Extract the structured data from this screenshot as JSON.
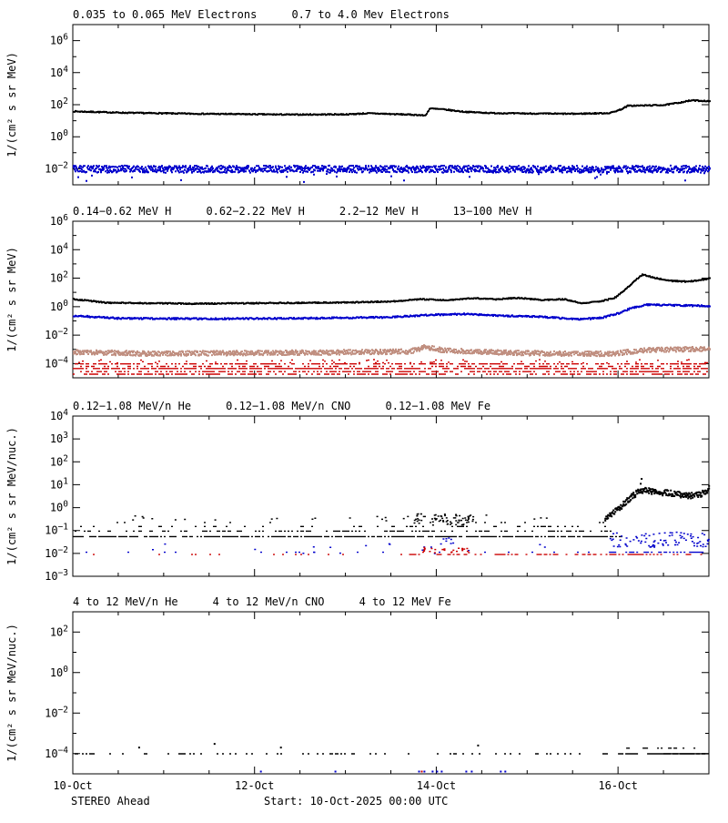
{
  "footer": {
    "left": "STEREO Ahead",
    "center": "Start: 10-Oct-2025 00:00 UTC"
  },
  "colors": {
    "frame": "#000000",
    "background": "#ffffff",
    "black": "#000000",
    "blue": "#0000cc",
    "tan": "#c08f80",
    "red": "#cc0000"
  },
  "x_axis": {
    "lim_days": [
      0,
      7
    ],
    "minor_step_days": 0.5,
    "major_ticks": [
      {
        "day": 0,
        "label": "10-Oct"
      },
      {
        "day": 2,
        "label": "12-Oct"
      },
      {
        "day": 4,
        "label": "14-Oct"
      },
      {
        "day": 6,
        "label": "16-Oct"
      }
    ]
  },
  "chart_data": [
    {
      "type": "scatter",
      "titles": [
        {
          "text": "0.035 to 0.065 MeV Electrons",
          "color": "#000000"
        },
        {
          "text": "0.7 to 4.0 Mev Electrons",
          "color": "#0000cc"
        }
      ],
      "ylabel": "1/(cm² s sr MeV)",
      "y_exp_range": [
        -3,
        7
      ],
      "y_label_start": -2,
      "y_label_step": 2,
      "series": [
        {
          "name": "0.035 to 0.065 MeV Electrons",
          "color": "#000000",
          "render": "band",
          "size": 2,
          "step": 1,
          "passes": 1,
          "jitter": 0.03,
          "waypoints": [
            [
              0,
              38
            ],
            [
              0.6,
              31
            ],
            [
              1.4,
              27
            ],
            [
              2.4,
              24
            ],
            [
              3.0,
              25
            ],
            [
              3.25,
              29
            ],
            [
              3.5,
              26
            ],
            [
              3.78,
              23
            ],
            [
              3.87,
              21
            ],
            [
              3.92,
              58
            ],
            [
              4.05,
              52
            ],
            [
              4.3,
              36
            ],
            [
              4.6,
              30
            ],
            [
              5.0,
              28
            ],
            [
              5.5,
              27
            ],
            [
              5.9,
              30
            ],
            [
              6.02,
              50
            ],
            [
              6.1,
              85
            ],
            [
              6.3,
              90
            ],
            [
              6.5,
              95
            ],
            [
              6.65,
              130
            ],
            [
              6.8,
              185
            ],
            [
              6.95,
              172
            ],
            [
              7,
              158
            ]
          ]
        },
        {
          "name": "0.7 to 4.0 Mev Electrons",
          "color": "#0000cc",
          "render": "band",
          "size": 2,
          "step": 1,
          "passes": 2,
          "jitter": 0.22,
          "outlier_p": 0.02,
          "outlier_dex": -0.6,
          "waypoints": [
            [
              0,
              0.0095
            ],
            [
              7,
              0.0095
            ]
          ]
        }
      ]
    },
    {
      "type": "scatter",
      "titles": [
        {
          "text": "0.14−0.62 MeV H",
          "color": "#000000"
        },
        {
          "text": "0.62−2.22 MeV H",
          "color": "#0000cc"
        },
        {
          "text": "2.2−12 MeV H",
          "color": "#c08f80"
        },
        {
          "text": "13−100 MeV H",
          "color": "#cc0000"
        }
      ],
      "ylabel": "1/(cm² s sr MeV)",
      "y_exp_range": [
        -5,
        6
      ],
      "y_label_start": -4,
      "y_label_step": 2,
      "series": [
        {
          "name": "0.14-0.62 MeV H",
          "color": "#000000",
          "render": "band",
          "size": 2,
          "step": 1,
          "passes": 1,
          "jitter": 0.035,
          "waypoints": [
            [
              0,
              3.4
            ],
            [
              0.35,
              1.9
            ],
            [
              1.3,
              1.6
            ],
            [
              2.3,
              1.8
            ],
            [
              3.1,
              2.0
            ],
            [
              3.55,
              2.4
            ],
            [
              3.8,
              3.3
            ],
            [
              4.1,
              2.9
            ],
            [
              4.4,
              3.9
            ],
            [
              4.65,
              3.3
            ],
            [
              4.9,
              4.1
            ],
            [
              5.15,
              2.9
            ],
            [
              5.4,
              3.3
            ],
            [
              5.6,
              1.7
            ],
            [
              5.8,
              2.4
            ],
            [
              5.95,
              4
            ],
            [
              6.05,
              12
            ],
            [
              6.18,
              70
            ],
            [
              6.26,
              180
            ],
            [
              6.38,
              110
            ],
            [
              6.55,
              65
            ],
            [
              6.75,
              58
            ],
            [
              6.9,
              70
            ],
            [
              7,
              100
            ]
          ]
        },
        {
          "name": "0.62-2.22 MeV H",
          "color": "#0000cc",
          "render": "band",
          "size": 2,
          "step": 1,
          "passes": 1,
          "jitter": 0.05,
          "waypoints": [
            [
              0,
              0.23
            ],
            [
              0.5,
              0.15
            ],
            [
              1.5,
              0.14
            ],
            [
              2.5,
              0.15
            ],
            [
              3.5,
              0.18
            ],
            [
              3.9,
              0.26
            ],
            [
              4.3,
              0.3
            ],
            [
              4.7,
              0.23
            ],
            [
              5.1,
              0.2
            ],
            [
              5.55,
              0.13
            ],
            [
              5.8,
              0.16
            ],
            [
              6.0,
              0.35
            ],
            [
              6.15,
              0.85
            ],
            [
              6.3,
              1.35
            ],
            [
              6.6,
              1.25
            ],
            [
              7,
              1.1
            ]
          ]
        },
        {
          "name": "2.2-12 MeV H",
          "color": "#c08f80",
          "render": "band",
          "size": 2,
          "step": 1,
          "passes": 2,
          "jitter": 0.17,
          "waypoints": [
            [
              0,
              0.00065
            ],
            [
              0.8,
              0.0005
            ],
            [
              1.8,
              0.00055
            ],
            [
              2.8,
              0.0006
            ],
            [
              3.7,
              0.0007
            ],
            [
              3.88,
              0.0015
            ],
            [
              4.05,
              0.0009
            ],
            [
              4.5,
              0.00065
            ],
            [
              5.0,
              0.00055
            ],
            [
              5.5,
              0.00048
            ],
            [
              5.95,
              0.0005
            ],
            [
              6.2,
              0.0008
            ],
            [
              6.5,
              0.00095
            ],
            [
              7,
              0.0011
            ]
          ]
        },
        {
          "name": "13-100 MeV H",
          "color": "#cc0000",
          "render": "rows",
          "levels": [
            {
              "v": 0.00016,
              "density": 0.18,
              "jitter": 0.12
            },
            {
              "v": 0.000105,
              "density": 0.55
            },
            {
              "v": 7e-05,
              "density": 0.35
            },
            {
              "v": 5e-05,
              "density": 0.75
            },
            {
              "v": 3e-05,
              "density": 0.5
            },
            {
              "v": 2e-05,
              "density": 0.55
            }
          ]
        }
      ]
    },
    {
      "type": "scatter",
      "titles": [
        {
          "text": "0.12−1.08 MeV/n He",
          "color": "#000000"
        },
        {
          "text": "0.12−1.08 MeV/n CNO",
          "color": "#0000cc"
        },
        {
          "text": "0.12−1.08 MeV Fe",
          "color": "#cc0000"
        }
      ],
      "ylabel": "1/(cm² s sr MeV/nuc.)",
      "y_exp_range": [
        -3,
        4
      ],
      "y_label_start": -3,
      "y_label_step": 1,
      "series": [
        {
          "name": "0.12-1.08 MeV/n He rows",
          "color": "#000000",
          "render": "rows",
          "levels": [
            {
              "v": 0.058,
              "density": 0.8,
              "d0": 0,
              "d1": 6.05
            },
            {
              "v": 0.1,
              "density": 0.4,
              "d0": 0,
              "d1": 6.0
            },
            {
              "v": 0.16,
              "density": 0.18,
              "d0": 0,
              "d1": 6.0
            },
            {
              "v": 0.24,
              "density": 0.07,
              "d0": 0,
              "d1": 6.0
            }
          ]
        },
        {
          "name": "0.12-1.08 MeV/n He clusters",
          "color": "#000000",
          "render": "clusters",
          "clusters": [
            {
              "d0": 3.75,
              "d1": 4.4,
              "v0": 0.18,
              "v1": 0.6,
              "n": 70
            },
            {
              "d0": 0.05,
              "d1": 6.0,
              "v0": 0.28,
              "v1": 0.5,
              "n": 25
            }
          ]
        },
        {
          "name": "0.12-1.08 MeV/n He event",
          "color": "#000000",
          "render": "band",
          "size": 2,
          "step": 1,
          "passes": 2,
          "jitter": 0.13,
          "waypoints": [
            [
              5.85,
              0.35
            ],
            [
              6.0,
              0.9
            ],
            [
              6.1,
              2.2
            ],
            [
              6.2,
              4.5
            ],
            [
              6.3,
              5.5
            ],
            [
              6.45,
              4.5
            ],
            [
              6.6,
              4.2
            ],
            [
              6.75,
              3.2
            ],
            [
              6.9,
              3.6
            ],
            [
              7,
              7
            ]
          ]
        },
        {
          "name": "0.12-1.08 MeV/n He spike",
          "color": "#000000",
          "render": "points",
          "points": [
            [
              6.25,
              18
            ],
            [
              6.24,
              11
            ]
          ]
        },
        {
          "name": "0.12-1.08 MeV/n CNO rows",
          "color": "#0000cc",
          "render": "rows",
          "levels": [
            {
              "v": 0.012,
              "density": 0.1,
              "d0": 0,
              "d1": 5.9
            },
            {
              "v": 0.012,
              "density": 0.55,
              "d0": 5.9,
              "d1": 7
            }
          ]
        },
        {
          "name": "0.12-1.08 MeV/n CNO clusters",
          "color": "#0000cc",
          "render": "clusters",
          "clusters": [
            {
              "d0": 5.9,
              "d1": 7,
              "v0": 0.02,
              "v1": 0.09,
              "n": 90
            },
            {
              "d0": 3.9,
              "d1": 4.2,
              "v0": 0.025,
              "v1": 0.05,
              "n": 8
            },
            {
              "d0": 0.3,
              "d1": 5.8,
              "v0": 0.01,
              "v1": 0.03,
              "n": 18
            }
          ]
        },
        {
          "name": "0.12-1.08 MeV Fe rows",
          "color": "#cc0000",
          "render": "rows",
          "levels": [
            {
              "v": 0.0095,
              "density": 0.08,
              "d0": 0,
              "d1": 3.7
            },
            {
              "v": 0.0095,
              "density": 0.45,
              "d0": 3.7,
              "d1": 7
            }
          ]
        },
        {
          "name": "0.12-1.08 MeV Fe clusters",
          "color": "#cc0000",
          "render": "clusters",
          "clusters": [
            {
              "d0": 3.78,
              "d1": 4.35,
              "v0": 0.011,
              "v1": 0.02,
              "n": 25
            }
          ]
        }
      ]
    },
    {
      "type": "scatter",
      "titles": [
        {
          "text": "4 to 12 MeV/n He",
          "color": "#000000"
        },
        {
          "text": "4 to 12 MeV/n CNO",
          "color": "#0000cc"
        },
        {
          "text": "4 to 12 MeV Fe",
          "color": "#cc0000"
        }
      ],
      "ylabel": "1/(cm² s sr MeV/nuc.)",
      "y_exp_range": [
        -5,
        3
      ],
      "y_label_start": -4,
      "y_label_step": 2,
      "series": [
        {
          "name": "4 to 12 MeV/n He rows",
          "color": "#000000",
          "render": "rows",
          "levels": [
            {
              "v": 0.000105,
              "density": 0.22,
              "d0": 0,
              "d1": 6.0
            },
            {
              "v": 0.000105,
              "density": 0.7,
              "d0": 6.0,
              "d1": 7
            },
            {
              "v": 0.0002,
              "density": 0.25,
              "d0": 6.05,
              "d1": 7
            }
          ]
        },
        {
          "name": "4 to 12 MeV/n He line",
          "color": "#000000",
          "render": "solid",
          "segments": [
            {
              "v": 0.000105,
              "d0": 6.5,
              "d1": 7
            }
          ]
        },
        {
          "name": "4 to 12 MeV/n He isolated",
          "color": "#000000",
          "render": "points",
          "points": [
            [
              0.72,
              0.0002
            ],
            [
              1.55,
              0.0003
            ],
            [
              2.28,
              0.0002
            ],
            [
              4.45,
              0.00025
            ]
          ]
        },
        {
          "name": "4 to 12 MeV/n CNO",
          "color": "#0000cc",
          "render": "points",
          "points": [
            [
              2.06,
              1.3e-05
            ],
            [
              2.88,
              1.3e-05
            ],
            [
              3.8,
              1.3e-05
            ],
            [
              3.86,
              1.3e-05
            ],
            [
              3.95,
              1.3e-05
            ],
            [
              4.0,
              1.3e-05
            ],
            [
              4.05,
              1.3e-05
            ],
            [
              4.32,
              1.3e-05
            ],
            [
              4.38,
              1.3e-05
            ],
            [
              4.7,
              1.3e-05
            ],
            [
              4.75,
              1.3e-05
            ]
          ]
        },
        {
          "name": "4 to 12 MeV Fe",
          "color": "#cc0000",
          "render": "points",
          "points": [
            [
              3.83,
              1.3e-05
            ]
          ]
        }
      ]
    }
  ]
}
